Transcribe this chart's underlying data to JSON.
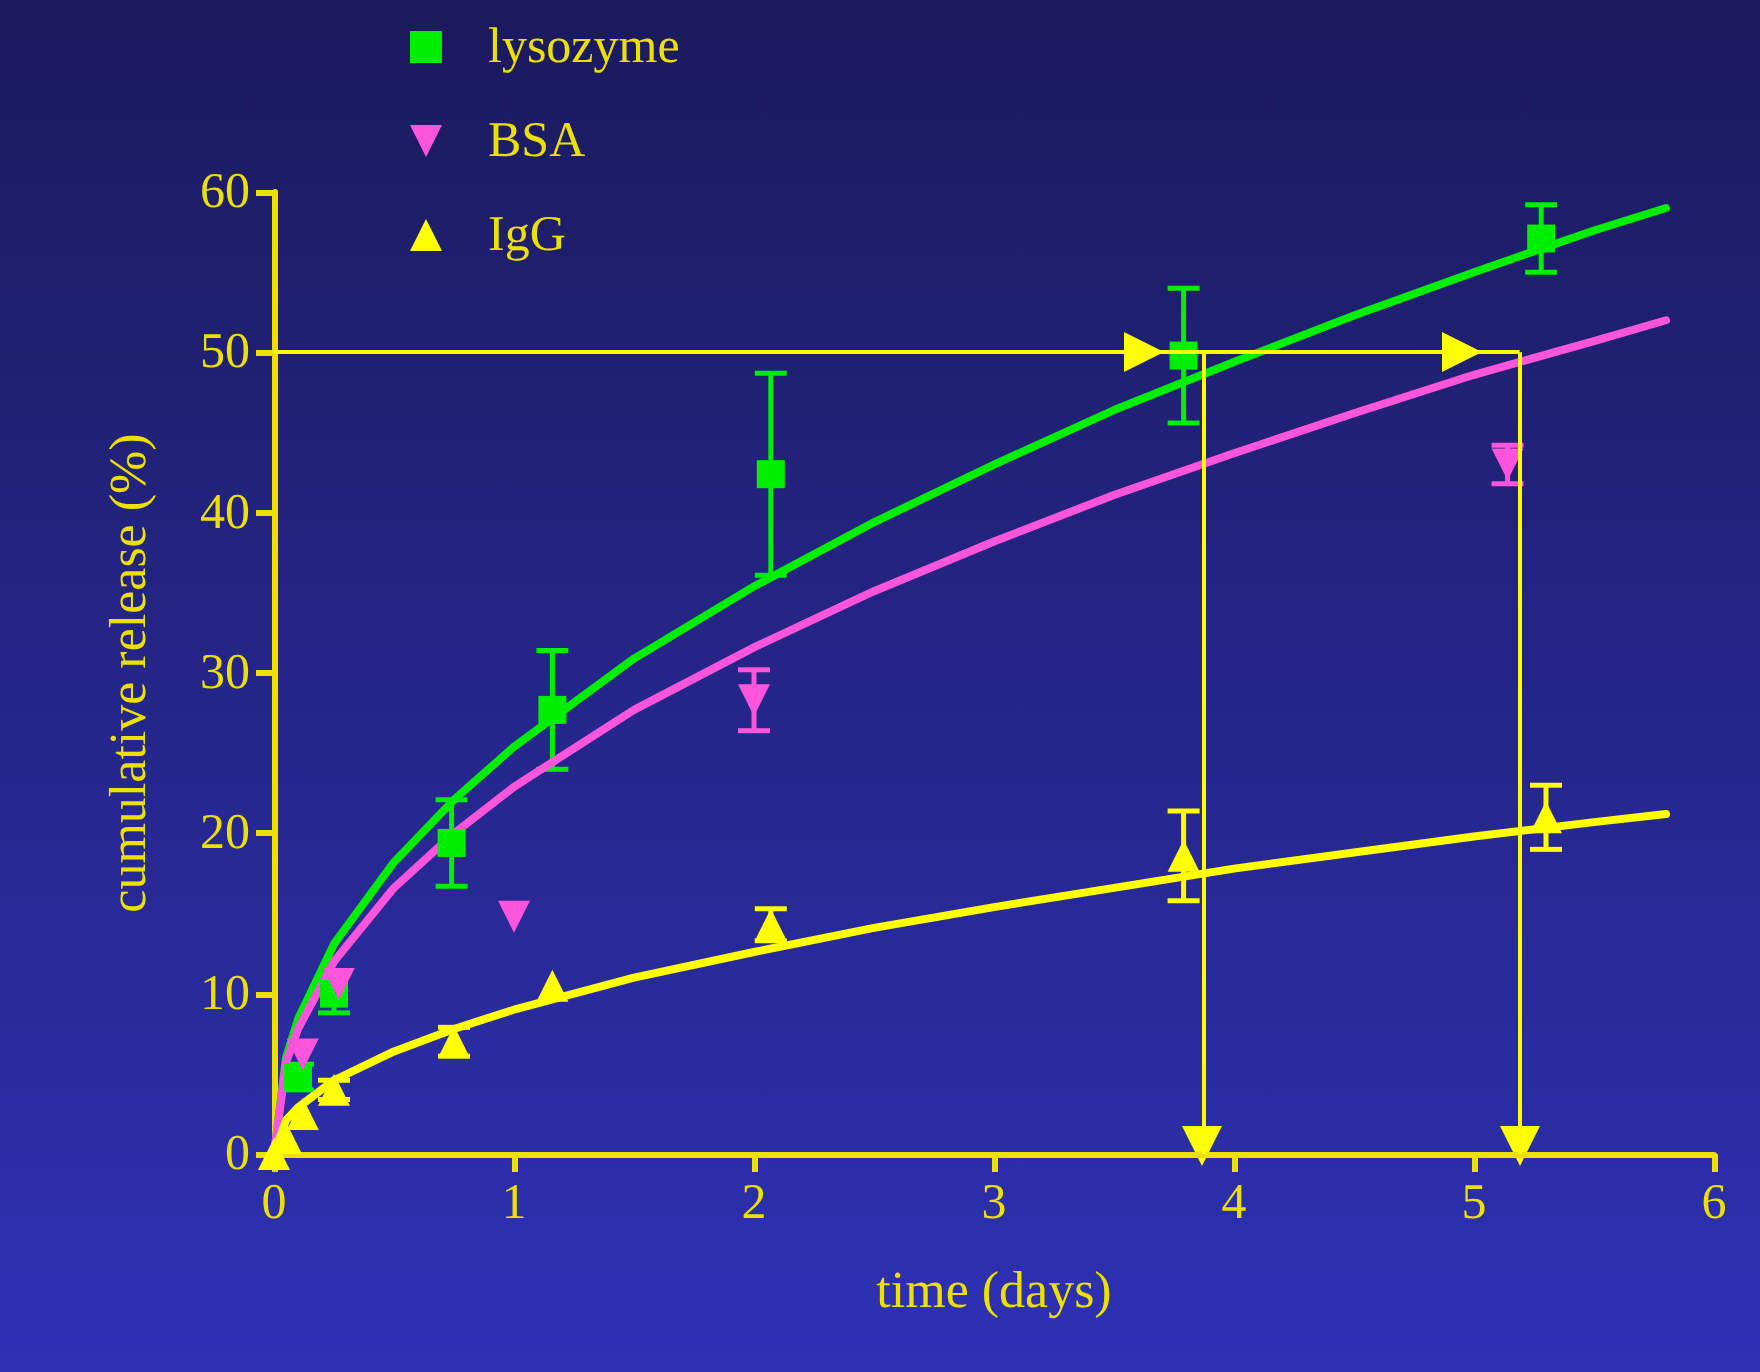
{
  "chart_data": {
    "type": "scatter",
    "xlabel": "time (days)",
    "ylabel": "cumulative release (%)",
    "xlim": [
      0,
      6
    ],
    "xticks": [
      0,
      1,
      2,
      3,
      4,
      5,
      6
    ],
    "ylim": [
      0,
      60
    ],
    "yticks": [
      0,
      10,
      20,
      30,
      40,
      50,
      60
    ],
    "grid": false,
    "legend": "top left",
    "series": [
      {
        "name": "lysozyme",
        "color": "#00ee00",
        "marker": "square",
        "x": [
          0.1,
          0.25,
          0.74,
          1.16,
          2.07,
          3.79,
          5.28
        ],
        "values": [
          4.8,
          10,
          19.4,
          27.7,
          42.4,
          49.8,
          57.1
        ],
        "errors": [
          0.8,
          1.2,
          2.7,
          3.7,
          6.3,
          4.2,
          2.1
        ]
      },
      {
        "name": "BSA",
        "color": "#ff55dd",
        "marker": "triangle-down",
        "x": [
          0.12,
          0.27,
          1.0,
          2.0,
          5.14
        ],
        "values": [
          6.2,
          10.6,
          14.8,
          28.3,
          43.0
        ],
        "errors": [
          null,
          null,
          null,
          1.9,
          1.2
        ]
      },
      {
        "name": "IgG",
        "color": "#ffff00",
        "marker": "triangle",
        "x": [
          0.0,
          0.05,
          0.12,
          0.25,
          0.75,
          1.16,
          2.07,
          3.79,
          5.3
        ],
        "values": [
          0.0,
          1.0,
          2.5,
          4.0,
          7.0,
          10.5,
          14.3,
          18.6,
          21.0
        ],
        "errors": [
          null,
          null,
          null,
          0.6,
          0.9,
          null,
          1.0,
          2.8,
          2.0
        ]
      },
      {
        "type": "line",
        "color": "#00ee00",
        "marker": "none",
        "x": [
          0,
          0.05,
          0.1,
          0.25,
          0.5,
          0.75,
          1,
          1.5,
          2,
          2.5,
          3,
          3.5,
          4,
          4.5,
          5,
          5.5,
          5.8
        ],
        "values": [
          0,
          6.0,
          8.4,
          13.1,
          18.2,
          22.1,
          25.4,
          30.9,
          35.4,
          39.4,
          43.0,
          46.4,
          49.4,
          52.3,
          55.0,
          57.6,
          59.0
        ]
      },
      {
        "type": "line",
        "color": "#ff55dd",
        "marker": "none",
        "x": [
          0,
          0.05,
          0.1,
          0.25,
          0.5,
          0.75,
          1,
          1.5,
          2,
          2.5,
          3,
          3.5,
          4,
          4.5,
          5,
          5.5,
          5.8
        ],
        "values": [
          0,
          5.7,
          7.8,
          12.0,
          16.6,
          20.0,
          22.9,
          27.7,
          31.6,
          35.1,
          38.2,
          41.1,
          43.7,
          46.2,
          48.6,
          50.7,
          52.0
        ]
      },
      {
        "type": "line",
        "color": "#ffff00",
        "marker": "none",
        "x": [
          0,
          0.05,
          0.1,
          0.25,
          0.5,
          0.75,
          1,
          1.5,
          2,
          2.5,
          3,
          3.5,
          4,
          4.5,
          5,
          5.5,
          5.8
        ],
        "values": [
          0,
          2.1,
          2.9,
          4.6,
          6.4,
          7.8,
          9.0,
          11.0,
          12.6,
          14.1,
          15.4,
          16.6,
          17.8,
          18.8,
          19.8,
          20.7,
          21.2
        ]
      }
    ],
    "ref_lines": [
      {
        "axis": "y",
        "value": 50,
        "color": "#ffff00"
      },
      {
        "axis": "x",
        "value": 3.87,
        "color": "#ffff00"
      },
      {
        "axis": "x",
        "value": 5.19,
        "color": "#ffff00"
      }
    ]
  }
}
